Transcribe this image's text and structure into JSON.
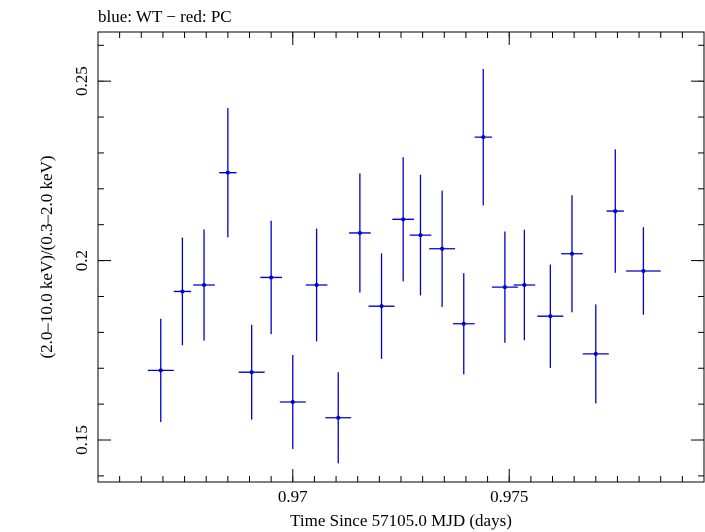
{
  "chart_data": {
    "type": "scatter",
    "title": "blue: WT − red: PC",
    "xlabel": "Time Since 57105.0 MJD (days)",
    "ylabel": "(2.0–10.0 keV)/(0.3–2.0 keV)",
    "xlim": [
      0.9655,
      0.9795
    ],
    "ylim": [
      0.1383,
      0.2637
    ],
    "x_ticks": [
      {
        "v": 0.97,
        "label": "0.97"
      },
      {
        "v": 0.975,
        "label": "0.975"
      }
    ],
    "y_ticks": [
      {
        "v": 0.15,
        "label": "0.15"
      },
      {
        "v": 0.2,
        "label": "0.2"
      },
      {
        "v": 0.25,
        "label": "0.25"
      }
    ],
    "x_minor_step": 0.0005,
    "y_minor_step": 0.01,
    "grid": false,
    "series": [
      {
        "color": "#0000cc",
        "points": [
          {
            "x": 0.96695,
            "xerr": 0.0003,
            "y": 0.1694,
            "yerr": 0.0144
          },
          {
            "x": 0.96745,
            "xerr": 0.0002,
            "y": 0.1914,
            "yerr": 0.015
          },
          {
            "x": 0.96795,
            "xerr": 0.00025,
            "y": 0.1932,
            "yerr": 0.0155
          },
          {
            "x": 0.9685,
            "xerr": 0.0002,
            "y": 0.2245,
            "yerr": 0.018
          },
          {
            "x": 0.96905,
            "xerr": 0.0003,
            "y": 0.1689,
            "yerr": 0.0132
          },
          {
            "x": 0.9695,
            "xerr": 0.00025,
            "y": 0.1953,
            "yerr": 0.0158
          },
          {
            "x": 0.97,
            "xerr": 0.0003,
            "y": 0.1606,
            "yerr": 0.0131
          },
          {
            "x": 0.97055,
            "xerr": 0.00025,
            "y": 0.1932,
            "yerr": 0.0157
          },
          {
            "x": 0.97105,
            "xerr": 0.0003,
            "y": 0.1562,
            "yerr": 0.0127
          },
          {
            "x": 0.97155,
            "xerr": 0.00025,
            "y": 0.2077,
            "yerr": 0.0166
          },
          {
            "x": 0.97205,
            "xerr": 0.0003,
            "y": 0.1873,
            "yerr": 0.0147
          },
          {
            "x": 0.97255,
            "xerr": 0.00025,
            "y": 0.2115,
            "yerr": 0.0173
          },
          {
            "x": 0.97295,
            "xerr": 0.00025,
            "y": 0.2071,
            "yerr": 0.0168
          },
          {
            "x": 0.97345,
            "xerr": 0.0003,
            "y": 0.2033,
            "yerr": 0.0162
          },
          {
            "x": 0.97395,
            "xerr": 0.00025,
            "y": 0.1824,
            "yerr": 0.0141
          },
          {
            "x": 0.9744,
            "xerr": 0.0002,
            "y": 0.2344,
            "yerr": 0.019
          },
          {
            "x": 0.9749,
            "xerr": 0.0003,
            "y": 0.1926,
            "yerr": 0.0155
          },
          {
            "x": 0.97535,
            "xerr": 0.00025,
            "y": 0.1932,
            "yerr": 0.0154
          },
          {
            "x": 0.97595,
            "xerr": 0.0003,
            "y": 0.1845,
            "yerr": 0.0144
          },
          {
            "x": 0.97645,
            "xerr": 0.00025,
            "y": 0.2019,
            "yerr": 0.0163
          },
          {
            "x": 0.977,
            "xerr": 0.0003,
            "y": 0.174,
            "yerr": 0.0138
          },
          {
            "x": 0.97745,
            "xerr": 0.0002,
            "y": 0.2138,
            "yerr": 0.0172
          },
          {
            "x": 0.9781,
            "xerr": 0.0004,
            "y": 0.1971,
            "yerr": 0.0122
          }
        ]
      }
    ]
  }
}
